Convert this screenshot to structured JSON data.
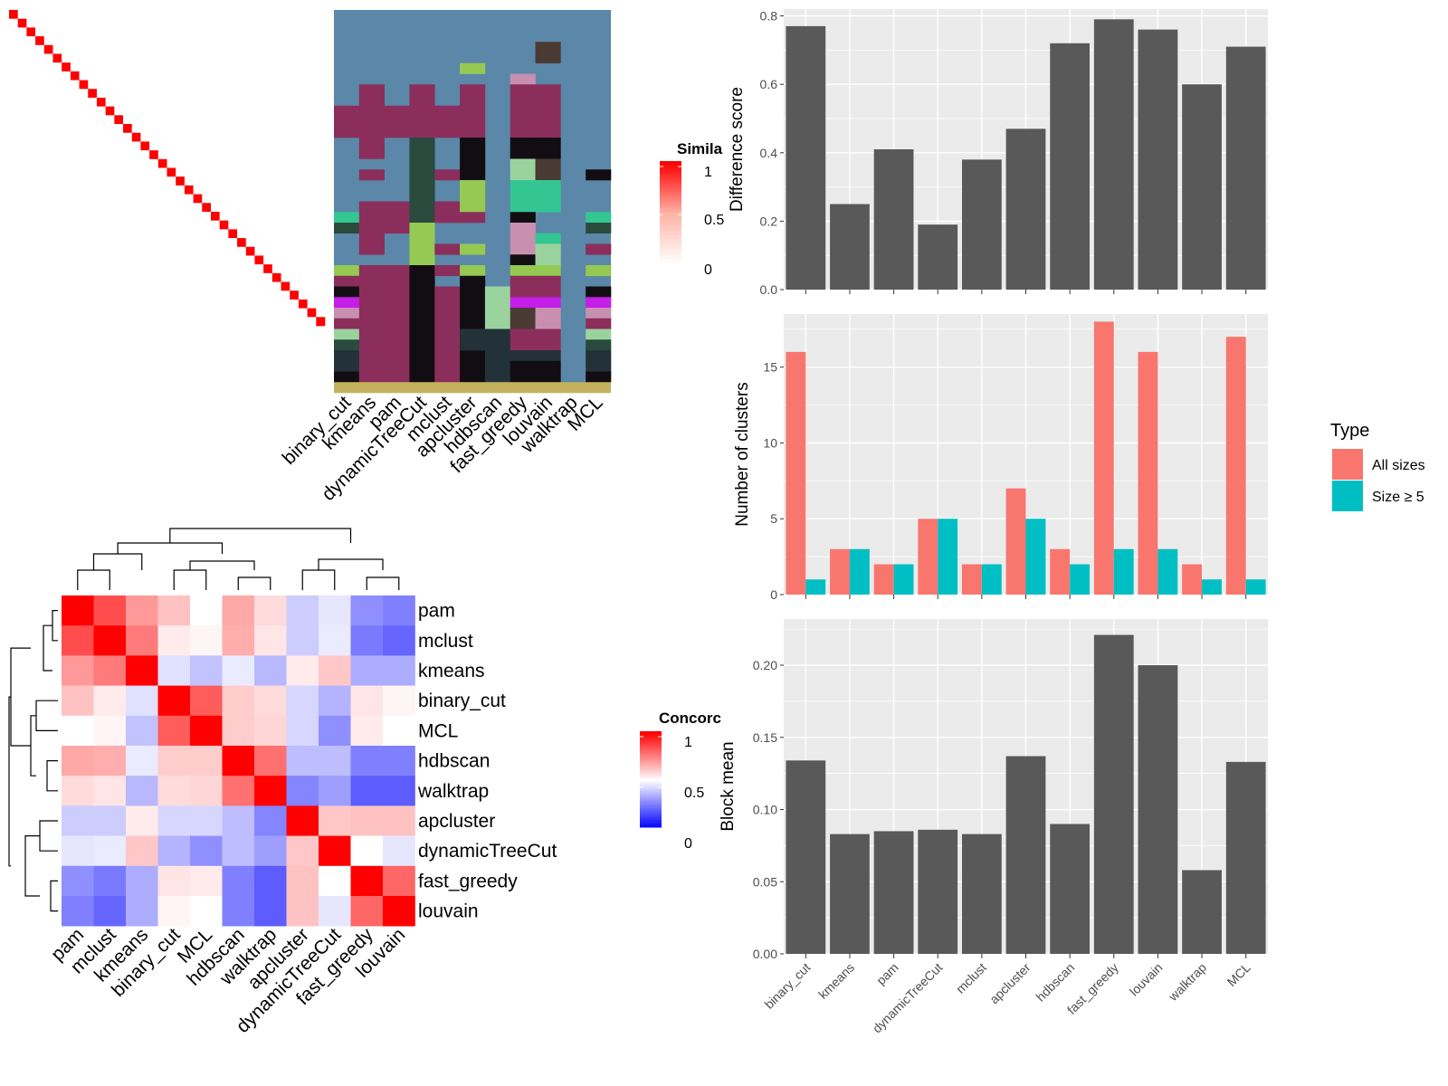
{
  "chart_data": [
    {
      "type": "heatmap",
      "panel": "similarity-matrix",
      "legend_title": "Simila",
      "legend_ticks": [
        "1",
        "0.5",
        "0"
      ],
      "colors": {
        "high": "#ff0000",
        "mid": "#ffb3a6",
        "low": "#ffffff"
      }
    },
    {
      "type": "heatmap",
      "panel": "cluster-assignments",
      "methods": [
        "binary_cut",
        "kmeans",
        "pam",
        "dynamicTreeCut",
        "mclust",
        "apcluster",
        "hdbscan",
        "fast_greedy",
        "louvain",
        "walktrap",
        "MCL"
      ],
      "colors": {
        "background": "#5b87a8",
        "maroon": "#8b2e5c",
        "black": "#120d12",
        "darkgreen": "#2a4a3e",
        "lime": "#95c952",
        "teal": "#33c693",
        "magenta": "#c41ee8",
        "pink": "#c88fb0",
        "brown": "#4a3a34",
        "olive": "#c4b15e",
        "slate": "#223238",
        "lightgreen": "#9bd39f"
      }
    },
    {
      "type": "heatmap",
      "panel": "concordance",
      "rows": [
        "pam",
        "mclust",
        "kmeans",
        "binary_cut",
        "MCL",
        "hdbscan",
        "walktrap",
        "apcluster",
        "dynamicTreeCut",
        "fast_greedy",
        "louvain"
      ],
      "cols": [
        "pam",
        "mclust",
        "kmeans",
        "binary_cut",
        "MCL",
        "hdbscan",
        "walktrap",
        "apcluster",
        "dynamicTreeCut",
        "fast_greedy",
        "louvain"
      ],
      "values": [
        [
          1.0,
          0.85,
          0.7,
          0.62,
          0.5,
          0.67,
          0.57,
          0.4,
          0.45,
          0.28,
          0.25
        ],
        [
          0.85,
          1.0,
          0.76,
          0.54,
          0.52,
          0.66,
          0.55,
          0.4,
          0.46,
          0.24,
          0.2
        ],
        [
          0.7,
          0.76,
          1.0,
          0.44,
          0.38,
          0.46,
          0.36,
          0.54,
          0.61,
          0.34,
          0.34
        ],
        [
          0.62,
          0.54,
          0.44,
          1.0,
          0.82,
          0.6,
          0.57,
          0.42,
          0.35,
          0.55,
          0.52
        ],
        [
          0.5,
          0.52,
          0.38,
          0.82,
          1.0,
          0.6,
          0.58,
          0.42,
          0.28,
          0.54,
          0.5
        ],
        [
          0.67,
          0.66,
          0.46,
          0.6,
          0.6,
          1.0,
          0.78,
          0.37,
          0.37,
          0.25,
          0.25
        ],
        [
          0.57,
          0.55,
          0.36,
          0.57,
          0.58,
          0.78,
          1.0,
          0.26,
          0.31,
          0.18,
          0.18
        ],
        [
          0.4,
          0.4,
          0.54,
          0.42,
          0.42,
          0.37,
          0.26,
          1.0,
          0.61,
          0.62,
          0.62
        ],
        [
          0.45,
          0.46,
          0.61,
          0.35,
          0.28,
          0.37,
          0.31,
          0.61,
          1.0,
          0.5,
          0.45
        ],
        [
          0.28,
          0.24,
          0.34,
          0.55,
          0.54,
          0.25,
          0.18,
          0.62,
          0.5,
          1.0,
          0.8
        ],
        [
          0.25,
          0.2,
          0.34,
          0.52,
          0.5,
          0.25,
          0.18,
          0.62,
          0.45,
          0.8,
          1.0
        ]
      ],
      "legend_title": "Concorc",
      "legend_ticks": [
        "1",
        "0.5",
        "0"
      ],
      "colors": {
        "high": "#ff0000",
        "mid": "#ffffff",
        "low": "#0000ff"
      }
    },
    {
      "type": "bar",
      "panel": "difference-score",
      "categories": [
        "binary_cut",
        "kmeans",
        "pam",
        "dynamicTreeCut",
        "mclust",
        "apcluster",
        "hdbscan",
        "fast_greedy",
        "louvain",
        "walktrap",
        "MCL"
      ],
      "values": [
        0.77,
        0.25,
        0.41,
        0.19,
        0.38,
        0.47,
        0.72,
        0.79,
        0.76,
        0.6,
        0.71
      ],
      "ylabel": "Difference score",
      "ylim": [
        0,
        0.82
      ],
      "yticks": [
        "0.0",
        "0.2",
        "0.4",
        "0.6",
        "0.8"
      ],
      "grid": true,
      "colors": {
        "bar": "#595959",
        "panel": "#ebebeb"
      }
    },
    {
      "type": "bar",
      "panel": "number-of-clusters",
      "categories": [
        "binary_cut",
        "kmeans",
        "pam",
        "dynamicTreeCut",
        "mclust",
        "apcluster",
        "hdbscan",
        "fast_greedy",
        "louvain",
        "walktrap",
        "MCL"
      ],
      "series": [
        {
          "name": "All sizes",
          "values": [
            16,
            3,
            2,
            5,
            2,
            7,
            3,
            18,
            16,
            2,
            17
          ]
        },
        {
          "name": "Size ≥ 5",
          "values": [
            1,
            3,
            2,
            5,
            2,
            5,
            2,
            3,
            3,
            1,
            1
          ]
        }
      ],
      "ylabel": "Number of clusters",
      "ylim": [
        0,
        18.5
      ],
      "yticks": [
        "0",
        "5",
        "10",
        "15"
      ],
      "legend_title": "Type",
      "legend_position": "right",
      "grid": true,
      "colors": {
        "All sizes": "#f8766d",
        "Size ≥ 5": "#00bfc4",
        "panel": "#ebebeb"
      }
    },
    {
      "type": "bar",
      "panel": "block-mean",
      "categories": [
        "binary_cut",
        "kmeans",
        "pam",
        "dynamicTreeCut",
        "mclust",
        "apcluster",
        "hdbscan",
        "fast_greedy",
        "louvain",
        "walktrap",
        "MCL"
      ],
      "values": [
        0.134,
        0.083,
        0.085,
        0.086,
        0.083,
        0.137,
        0.09,
        0.221,
        0.2,
        0.058,
        0.133
      ],
      "ylabel": "Block mean",
      "ylim": [
        0,
        0.232
      ],
      "yticks": [
        "0.00",
        "0.05",
        "0.10",
        "0.15",
        "0.20"
      ],
      "grid": true,
      "colors": {
        "bar": "#595959",
        "panel": "#ebebeb"
      }
    }
  ]
}
